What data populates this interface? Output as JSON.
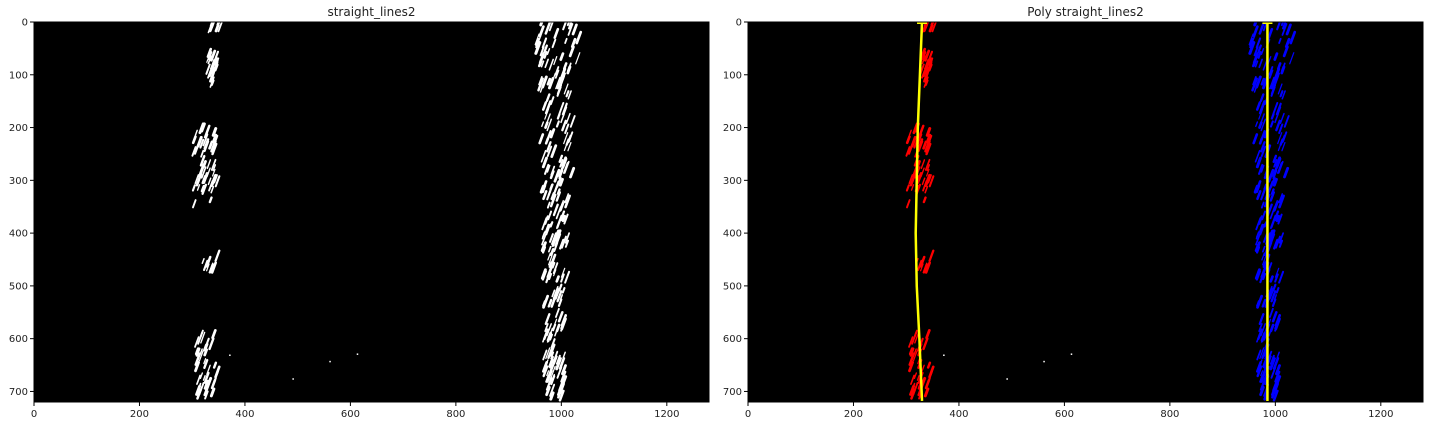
{
  "chart_data": [
    {
      "type": "image",
      "title": "straight_lines2",
      "xlim": [
        0,
        1280
      ],
      "ylim": [
        720,
        0
      ],
      "xticks": [
        0,
        200,
        400,
        600,
        800,
        1000,
        1200
      ],
      "yticks": [
        0,
        100,
        200,
        300,
        400,
        500,
        600,
        700
      ],
      "colors": {
        "background": "#000000",
        "pixels": "#ffffff"
      },
      "grid": false,
      "legend": "none",
      "lane_pixel_regions": [
        {
          "x0": 325,
          "x1": 355,
          "y0": 0,
          "y1": 25
        },
        {
          "x0": 325,
          "x1": 345,
          "y0": 60,
          "y1": 125
        },
        {
          "x0": 300,
          "x1": 345,
          "y0": 200,
          "y1": 355
        },
        {
          "x0": 310,
          "x1": 345,
          "y0": 450,
          "y1": 475
        },
        {
          "x0": 305,
          "x1": 345,
          "y0": 595,
          "y1": 718
        },
        {
          "x0": 950,
          "x1": 1030,
          "y0": 0,
          "y1": 80
        },
        {
          "x0": 955,
          "x1": 1020,
          "y0": 80,
          "y1": 300
        },
        {
          "x0": 960,
          "x1": 1010,
          "y0": 300,
          "y1": 500
        },
        {
          "x0": 965,
          "x1": 1005,
          "y0": 500,
          "y1": 718
        }
      ]
    },
    {
      "type": "image",
      "title": "Poly straight_lines2",
      "xlim": [
        0,
        1280
      ],
      "ylim": [
        720,
        0
      ],
      "xticks": [
        0,
        200,
        400,
        600,
        800,
        1000,
        1200
      ],
      "yticks": [
        0,
        100,
        200,
        300,
        400,
        500,
        600,
        700
      ],
      "colors": {
        "background": "#000000",
        "left_pixels": "#ff0000",
        "right_pixels": "#0000ff",
        "fit_line": "#ffff00"
      },
      "grid": false,
      "legend": "none",
      "left_fit": {
        "x": [
          330,
          326,
          322,
          320,
          318,
          320,
          325,
          330
        ],
        "y": [
          0,
          100,
          200,
          300,
          400,
          500,
          600,
          718
        ]
      },
      "right_fit": {
        "x": [
          985,
          985,
          985,
          985,
          985,
          985,
          985,
          985
        ],
        "y": [
          0,
          100,
          200,
          300,
          400,
          500,
          600,
          718
        ]
      }
    }
  ]
}
